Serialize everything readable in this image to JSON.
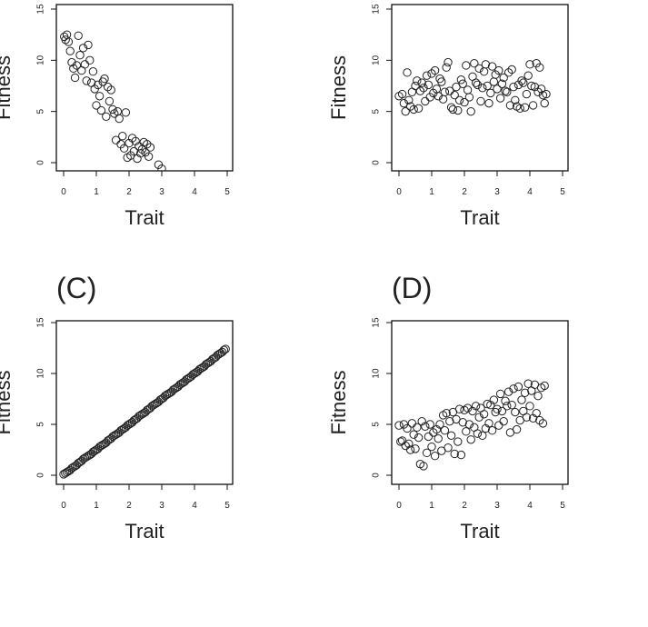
{
  "chart_data": [
    {
      "panel": "",
      "type": "scatter",
      "xlabel": "Trait",
      "ylabel": "Fitness",
      "xlim": [
        0,
        5
      ],
      "ylim": [
        0,
        15
      ],
      "xticks": [
        "0",
        "1",
        "2",
        "3",
        "4",
        "5"
      ],
      "yticks": [
        "0",
        "5",
        "10",
        "15"
      ],
      "grid": false,
      "points": [
        [
          0.02,
          12.3
        ],
        [
          0.06,
          12.0
        ],
        [
          0.1,
          12.5
        ],
        [
          0.15,
          11.8
        ],
        [
          0.2,
          10.9
        ],
        [
          0.25,
          9.8
        ],
        [
          0.3,
          9.2
        ],
        [
          0.35,
          8.3
        ],
        [
          0.4,
          9.5
        ],
        [
          0.45,
          12.4
        ],
        [
          0.5,
          10.5
        ],
        [
          0.55,
          9.0
        ],
        [
          0.6,
          11.2
        ],
        [
          0.65,
          9.6
        ],
        [
          0.7,
          8.0
        ],
        [
          0.75,
          11.5
        ],
        [
          0.8,
          10.0
        ],
        [
          0.85,
          7.8
        ],
        [
          0.9,
          8.9
        ],
        [
          0.95,
          7.2
        ],
        [
          1.0,
          5.6
        ],
        [
          1.05,
          7.6
        ],
        [
          1.1,
          6.5
        ],
        [
          1.15,
          5.1
        ],
        [
          1.2,
          7.9
        ],
        [
          1.25,
          8.2
        ],
        [
          1.3,
          4.5
        ],
        [
          1.35,
          7.4
        ],
        [
          1.4,
          6.0
        ],
        [
          1.45,
          7.1
        ],
        [
          1.5,
          5.2
        ],
        [
          1.55,
          4.8
        ],
        [
          1.6,
          2.2
        ],
        [
          1.65,
          5.0
        ],
        [
          1.7,
          4.3
        ],
        [
          1.75,
          1.8
        ],
        [
          1.8,
          2.6
        ],
        [
          1.85,
          1.4
        ],
        [
          1.9,
          4.9
        ],
        [
          1.95,
          0.5
        ],
        [
          2.0,
          1.9
        ],
        [
          2.05,
          0.7
        ],
        [
          2.1,
          2.4
        ],
        [
          2.15,
          1.1
        ],
        [
          2.2,
          2.1
        ],
        [
          2.25,
          0.4
        ],
        [
          2.3,
          1.6
        ],
        [
          2.35,
          0.9
        ],
        [
          2.4,
          1.3
        ],
        [
          2.45,
          2.0
        ],
        [
          2.5,
          1.0
        ],
        [
          2.55,
          1.8
        ],
        [
          2.6,
          0.6
        ],
        [
          2.65,
          1.5
        ],
        [
          2.9,
          -0.2
        ],
        [
          3.0,
          -0.6
        ]
      ]
    },
    {
      "panel": "",
      "type": "scatter",
      "xlabel": "Trait",
      "ylabel": "Fitness",
      "xlim": [
        0,
        5
      ],
      "ylim": [
        0,
        15
      ],
      "xticks": [
        "0",
        "1",
        "2",
        "3",
        "4",
        "5"
      ],
      "yticks": [
        "0",
        "5",
        "10",
        "15"
      ],
      "grid": false,
      "points": [
        [
          0.0,
          6.5
        ],
        [
          0.1,
          6.7
        ],
        [
          0.15,
          5.8
        ],
        [
          0.2,
          5.0
        ],
        [
          0.25,
          8.8
        ],
        [
          0.3,
          6.1
        ],
        [
          0.35,
          5.5
        ],
        [
          0.4,
          6.9
        ],
        [
          0.45,
          5.2
        ],
        [
          0.5,
          7.5
        ],
        [
          0.55,
          8.0
        ],
        [
          0.6,
          5.3
        ],
        [
          0.65,
          7.0
        ],
        [
          0.7,
          7.8
        ],
        [
          0.75,
          7.3
        ],
        [
          0.8,
          6.0
        ],
        [
          0.85,
          8.5
        ],
        [
          0.9,
          7.6
        ],
        [
          0.95,
          6.4
        ],
        [
          1.0,
          8.7
        ],
        [
          1.05,
          6.8
        ],
        [
          1.1,
          9.0
        ],
        [
          1.15,
          7.2
        ],
        [
          1.2,
          6.5
        ],
        [
          1.25,
          8.2
        ],
        [
          1.3,
          7.9
        ],
        [
          1.35,
          6.2
        ],
        [
          1.4,
          6.9
        ],
        [
          1.45,
          9.3
        ],
        [
          1.5,
          9.8
        ],
        [
          1.55,
          7.0
        ],
        [
          1.6,
          5.4
        ],
        [
          1.65,
          5.2
        ],
        [
          1.7,
          6.6
        ],
        [
          1.75,
          7.4
        ],
        [
          1.8,
          5.1
        ],
        [
          1.85,
          6.1
        ],
        [
          1.9,
          8.1
        ],
        [
          1.95,
          7.7
        ],
        [
          2.0,
          5.9
        ],
        [
          2.05,
          9.5
        ],
        [
          2.1,
          7.1
        ],
        [
          2.15,
          6.4
        ],
        [
          2.2,
          5.0
        ],
        [
          2.25,
          8.4
        ],
        [
          2.3,
          9.7
        ],
        [
          2.35,
          7.8
        ],
        [
          2.4,
          7.6
        ],
        [
          2.45,
          9.2
        ],
        [
          2.5,
          6.0
        ],
        [
          2.55,
          7.3
        ],
        [
          2.6,
          8.9
        ],
        [
          2.65,
          9.6
        ],
        [
          2.7,
          7.5
        ],
        [
          2.75,
          5.8
        ],
        [
          2.8,
          6.8
        ],
        [
          2.85,
          9.4
        ],
        [
          2.9,
          7.9
        ],
        [
          2.95,
          8.6
        ],
        [
          3.0,
          7.2
        ],
        [
          3.05,
          9.0
        ],
        [
          3.1,
          6.3
        ],
        [
          3.15,
          7.7
        ],
        [
          3.2,
          8.3
        ],
        [
          3.25,
          7.0
        ],
        [
          3.3,
          6.9
        ],
        [
          3.35,
          8.8
        ],
        [
          3.4,
          5.6
        ],
        [
          3.45,
          9.1
        ],
        [
          3.5,
          7.4
        ],
        [
          3.55,
          6.1
        ],
        [
          3.6,
          5.5
        ],
        [
          3.65,
          7.6
        ],
        [
          3.7,
          5.3
        ],
        [
          3.75,
          8.0
        ],
        [
          3.8,
          7.8
        ],
        [
          3.85,
          5.4
        ],
        [
          3.9,
          6.7
        ],
        [
          3.95,
          8.5
        ],
        [
          4.0,
          9.6
        ],
        [
          4.05,
          7.5
        ],
        [
          4.1,
          5.6
        ],
        [
          4.15,
          7.4
        ],
        [
          4.2,
          9.7
        ],
        [
          4.25,
          6.9
        ],
        [
          4.3,
          9.3
        ],
        [
          4.35,
          7.2
        ],
        [
          4.4,
          6.6
        ],
        [
          4.45,
          5.8
        ],
        [
          4.5,
          6.7
        ]
      ]
    },
    {
      "panel": "(C)",
      "type": "scatter",
      "xlabel": "Trait",
      "ylabel": "Fitness",
      "xlim": [
        0,
        5
      ],
      "ylim": [
        0,
        15
      ],
      "xticks": [
        "0",
        "1",
        "2",
        "3",
        "4",
        "5"
      ],
      "yticks": [
        "0",
        "5",
        "10",
        "15"
      ],
      "grid": false,
      "points": [
        [
          0.0,
          0.1
        ],
        [
          0.05,
          0.2
        ],
        [
          0.1,
          0.3
        ],
        [
          0.15,
          0.4
        ],
        [
          0.2,
          0.5
        ],
        [
          0.25,
          0.7
        ],
        [
          0.3,
          0.8
        ],
        [
          0.35,
          0.9
        ],
        [
          0.4,
          1.0
        ],
        [
          0.45,
          1.2
        ],
        [
          0.5,
          1.3
        ],
        [
          0.55,
          1.4
        ],
        [
          0.6,
          1.6
        ],
        [
          0.65,
          1.7
        ],
        [
          0.7,
          1.8
        ],
        [
          0.75,
          1.9
        ],
        [
          0.8,
          2.0
        ],
        [
          0.85,
          2.1
        ],
        [
          0.9,
          2.3
        ],
        [
          0.95,
          2.4
        ],
        [
          1.0,
          2.5
        ],
        [
          1.05,
          2.6
        ],
        [
          1.1,
          2.8
        ],
        [
          1.15,
          2.9
        ],
        [
          1.2,
          3.0
        ],
        [
          1.25,
          3.1
        ],
        [
          1.3,
          3.2
        ],
        [
          1.35,
          3.4
        ],
        [
          1.4,
          3.5
        ],
        [
          1.45,
          3.6
        ],
        [
          1.5,
          3.8
        ],
        [
          1.55,
          3.9
        ],
        [
          1.6,
          4.0
        ],
        [
          1.65,
          4.1
        ],
        [
          1.7,
          4.2
        ],
        [
          1.75,
          4.4
        ],
        [
          1.8,
          4.5
        ],
        [
          1.85,
          4.6
        ],
        [
          1.9,
          4.7
        ],
        [
          1.95,
          4.9
        ],
        [
          2.0,
          5.0
        ],
        [
          2.05,
          5.1
        ],
        [
          2.1,
          5.2
        ],
        [
          2.15,
          5.4
        ],
        [
          2.2,
          5.5
        ],
        [
          2.25,
          5.6
        ],
        [
          2.3,
          5.8
        ],
        [
          2.35,
          5.9
        ],
        [
          2.4,
          6.0
        ],
        [
          2.45,
          6.1
        ],
        [
          2.5,
          6.2
        ],
        [
          2.55,
          6.4
        ],
        [
          2.6,
          6.5
        ],
        [
          2.65,
          6.6
        ],
        [
          2.7,
          6.8
        ],
        [
          2.75,
          6.9
        ],
        [
          2.8,
          7.0
        ],
        [
          2.85,
          7.1
        ],
        [
          2.9,
          7.2
        ],
        [
          2.95,
          7.4
        ],
        [
          3.0,
          7.5
        ],
        [
          3.05,
          7.6
        ],
        [
          3.1,
          7.8
        ],
        [
          3.15,
          7.9
        ],
        [
          3.2,
          8.0
        ],
        [
          3.25,
          8.1
        ],
        [
          3.3,
          8.2
        ],
        [
          3.35,
          8.4
        ],
        [
          3.4,
          8.5
        ],
        [
          3.45,
          8.6
        ],
        [
          3.5,
          8.7
        ],
        [
          3.55,
          8.9
        ],
        [
          3.6,
          9.0
        ],
        [
          3.65,
          9.1
        ],
        [
          3.7,
          9.2
        ],
        [
          3.75,
          9.4
        ],
        [
          3.8,
          9.5
        ],
        [
          3.85,
          9.6
        ],
        [
          3.9,
          9.7
        ],
        [
          3.95,
          9.9
        ],
        [
          4.0,
          10.0
        ],
        [
          4.05,
          10.1
        ],
        [
          4.1,
          10.2
        ],
        [
          4.15,
          10.4
        ],
        [
          4.2,
          10.5
        ],
        [
          4.25,
          10.6
        ],
        [
          4.3,
          10.7
        ],
        [
          4.35,
          10.9
        ],
        [
          4.4,
          11.0
        ],
        [
          4.45,
          11.1
        ],
        [
          4.5,
          11.2
        ],
        [
          4.55,
          11.4
        ],
        [
          4.6,
          11.5
        ],
        [
          4.65,
          11.6
        ],
        [
          4.7,
          11.8
        ],
        [
          4.75,
          11.9
        ],
        [
          4.8,
          12.0
        ],
        [
          4.85,
          12.1
        ],
        [
          4.9,
          12.3
        ],
        [
          4.95,
          12.4
        ]
      ]
    },
    {
      "panel": "(D)",
      "type": "scatter",
      "xlabel": "Trait",
      "ylabel": "Fitness",
      "xlim": [
        0,
        5
      ],
      "ylim": [
        0,
        15
      ],
      "xticks": [
        "0",
        "1",
        "2",
        "3",
        "4",
        "5"
      ],
      "yticks": [
        "0",
        "5",
        "10",
        "15"
      ],
      "grid": false,
      "points": [
        [
          0.0,
          4.9
        ],
        [
          0.05,
          3.3
        ],
        [
          0.1,
          3.4
        ],
        [
          0.15,
          5.0
        ],
        [
          0.2,
          2.9
        ],
        [
          0.25,
          4.6
        ],
        [
          0.3,
          3.1
        ],
        [
          0.35,
          2.5
        ],
        [
          0.4,
          5.1
        ],
        [
          0.45,
          4.0
        ],
        [
          0.5,
          2.6
        ],
        [
          0.55,
          4.7
        ],
        [
          0.6,
          3.7
        ],
        [
          0.65,
          1.1
        ],
        [
          0.7,
          5.3
        ],
        [
          0.75,
          0.9
        ],
        [
          0.8,
          4.8
        ],
        [
          0.85,
          2.2
        ],
        [
          0.9,
          3.8
        ],
        [
          0.95,
          5.0
        ],
        [
          1.0,
          2.8
        ],
        [
          1.05,
          4.2
        ],
        [
          1.1,
          1.9
        ],
        [
          1.15,
          4.5
        ],
        [
          1.2,
          3.6
        ],
        [
          1.25,
          5.0
        ],
        [
          1.3,
          2.4
        ],
        [
          1.35,
          5.9
        ],
        [
          1.4,
          4.4
        ],
        [
          1.45,
          6.1
        ],
        [
          1.5,
          2.7
        ],
        [
          1.55,
          5.3
        ],
        [
          1.6,
          3.9
        ],
        [
          1.65,
          6.2
        ],
        [
          1.7,
          2.1
        ],
        [
          1.75,
          5.5
        ],
        [
          1.8,
          3.3
        ],
        [
          1.85,
          6.5
        ],
        [
          1.9,
          2.0
        ],
        [
          1.95,
          5.2
        ],
        [
          2.0,
          6.4
        ],
        [
          2.05,
          4.3
        ],
        [
          2.1,
          6.6
        ],
        [
          2.15,
          5.0
        ],
        [
          2.2,
          3.5
        ],
        [
          2.25,
          6.3
        ],
        [
          2.3,
          4.7
        ],
        [
          2.35,
          6.8
        ],
        [
          2.4,
          4.1
        ],
        [
          2.45,
          5.7
        ],
        [
          2.5,
          6.6
        ],
        [
          2.55,
          3.9
        ],
        [
          2.6,
          6.0
        ],
        [
          2.65,
          4.6
        ],
        [
          2.7,
          7.0
        ],
        [
          2.75,
          5.1
        ],
        [
          2.8,
          6.9
        ],
        [
          2.85,
          4.4
        ],
        [
          2.9,
          7.4
        ],
        [
          2.95,
          6.2
        ],
        [
          3.0,
          6.5
        ],
        [
          3.05,
          4.9
        ],
        [
          3.1,
          8.0
        ],
        [
          3.15,
          6.3
        ],
        [
          3.2,
          5.3
        ],
        [
          3.25,
          7.3
        ],
        [
          3.3,
          6.8
        ],
        [
          3.35,
          8.2
        ],
        [
          3.4,
          4.2
        ],
        [
          3.45,
          6.9
        ],
        [
          3.5,
          8.5
        ],
        [
          3.55,
          6.2
        ],
        [
          3.6,
          4.5
        ],
        [
          3.65,
          8.7
        ],
        [
          3.7,
          5.4
        ],
        [
          3.75,
          7.4
        ],
        [
          3.8,
          6.3
        ],
        [
          3.85,
          8.1
        ],
        [
          3.9,
          5.7
        ],
        [
          3.95,
          9.0
        ],
        [
          4.0,
          6.8
        ],
        [
          4.05,
          8.3
        ],
        [
          4.1,
          5.6
        ],
        [
          4.15,
          8.9
        ],
        [
          4.2,
          6.1
        ],
        [
          4.25,
          7.8
        ],
        [
          4.3,
          5.4
        ],
        [
          4.35,
          8.6
        ],
        [
          4.4,
          5.1
        ],
        [
          4.45,
          8.8
        ]
      ]
    }
  ]
}
